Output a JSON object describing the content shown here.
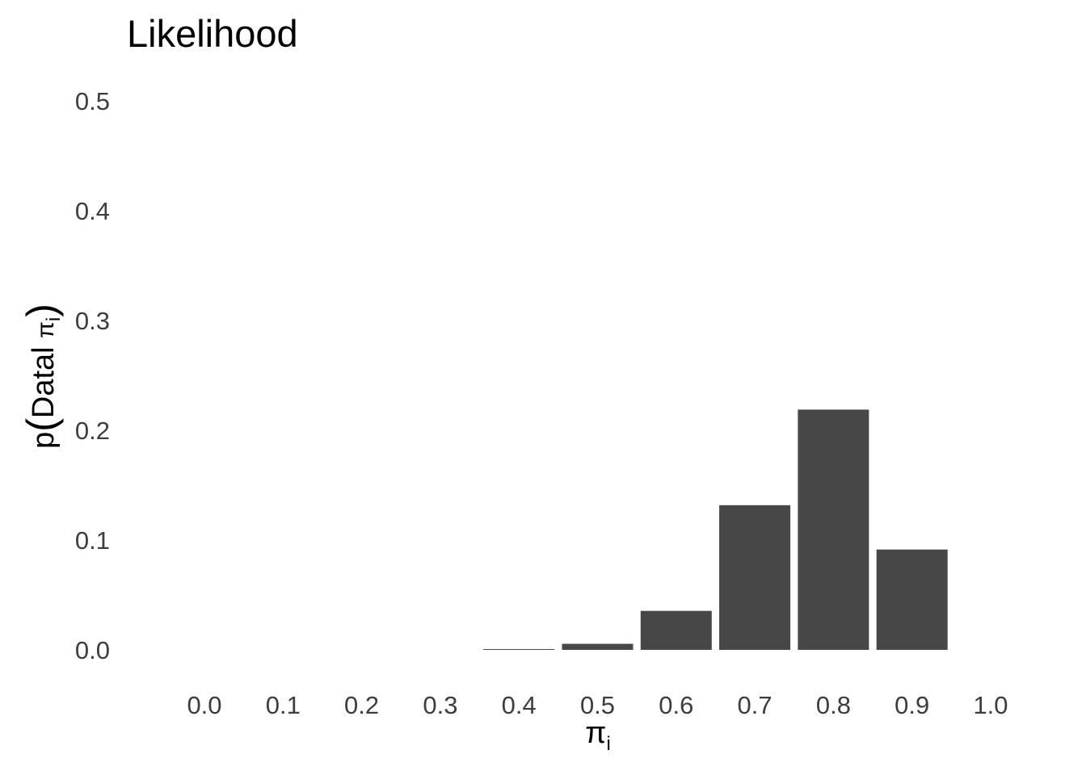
{
  "chart_data": {
    "type": "bar",
    "title": "Likelihood",
    "xlabel": {
      "symbol": "π",
      "subscript": "i"
    },
    "ylabel": {
      "prefix": "p",
      "open_paren": "(",
      "text": "Datal ",
      "symbol": "π",
      "subscript": "i",
      "close_paren": ")"
    },
    "x": [
      0.0,
      0.1,
      0.2,
      0.3,
      0.4,
      0.5,
      0.6,
      0.7,
      0.8,
      0.9,
      1.0
    ],
    "values": [
      0.0,
      0.0,
      0.0,
      0.0,
      0.0007,
      0.0055,
      0.0355,
      0.1318,
      0.2188,
      0.0914,
      0.0
    ],
    "x_tick_labels": [
      "0.0",
      "0.1",
      "0.2",
      "0.3",
      "0.4",
      "0.5",
      "0.6",
      "0.7",
      "0.8",
      "0.9",
      "1.0"
    ],
    "y_tick_values": [
      0.0,
      0.1,
      0.2,
      0.3,
      0.4,
      0.5
    ],
    "y_tick_labels": [
      "0.0",
      "0.1",
      "0.2",
      "0.3",
      "0.4",
      "0.5"
    ],
    "ylim": [
      0,
      0.5
    ],
    "xlim": [
      0.0,
      1.0
    ],
    "grid": false,
    "bar_color": "#474747"
  }
}
